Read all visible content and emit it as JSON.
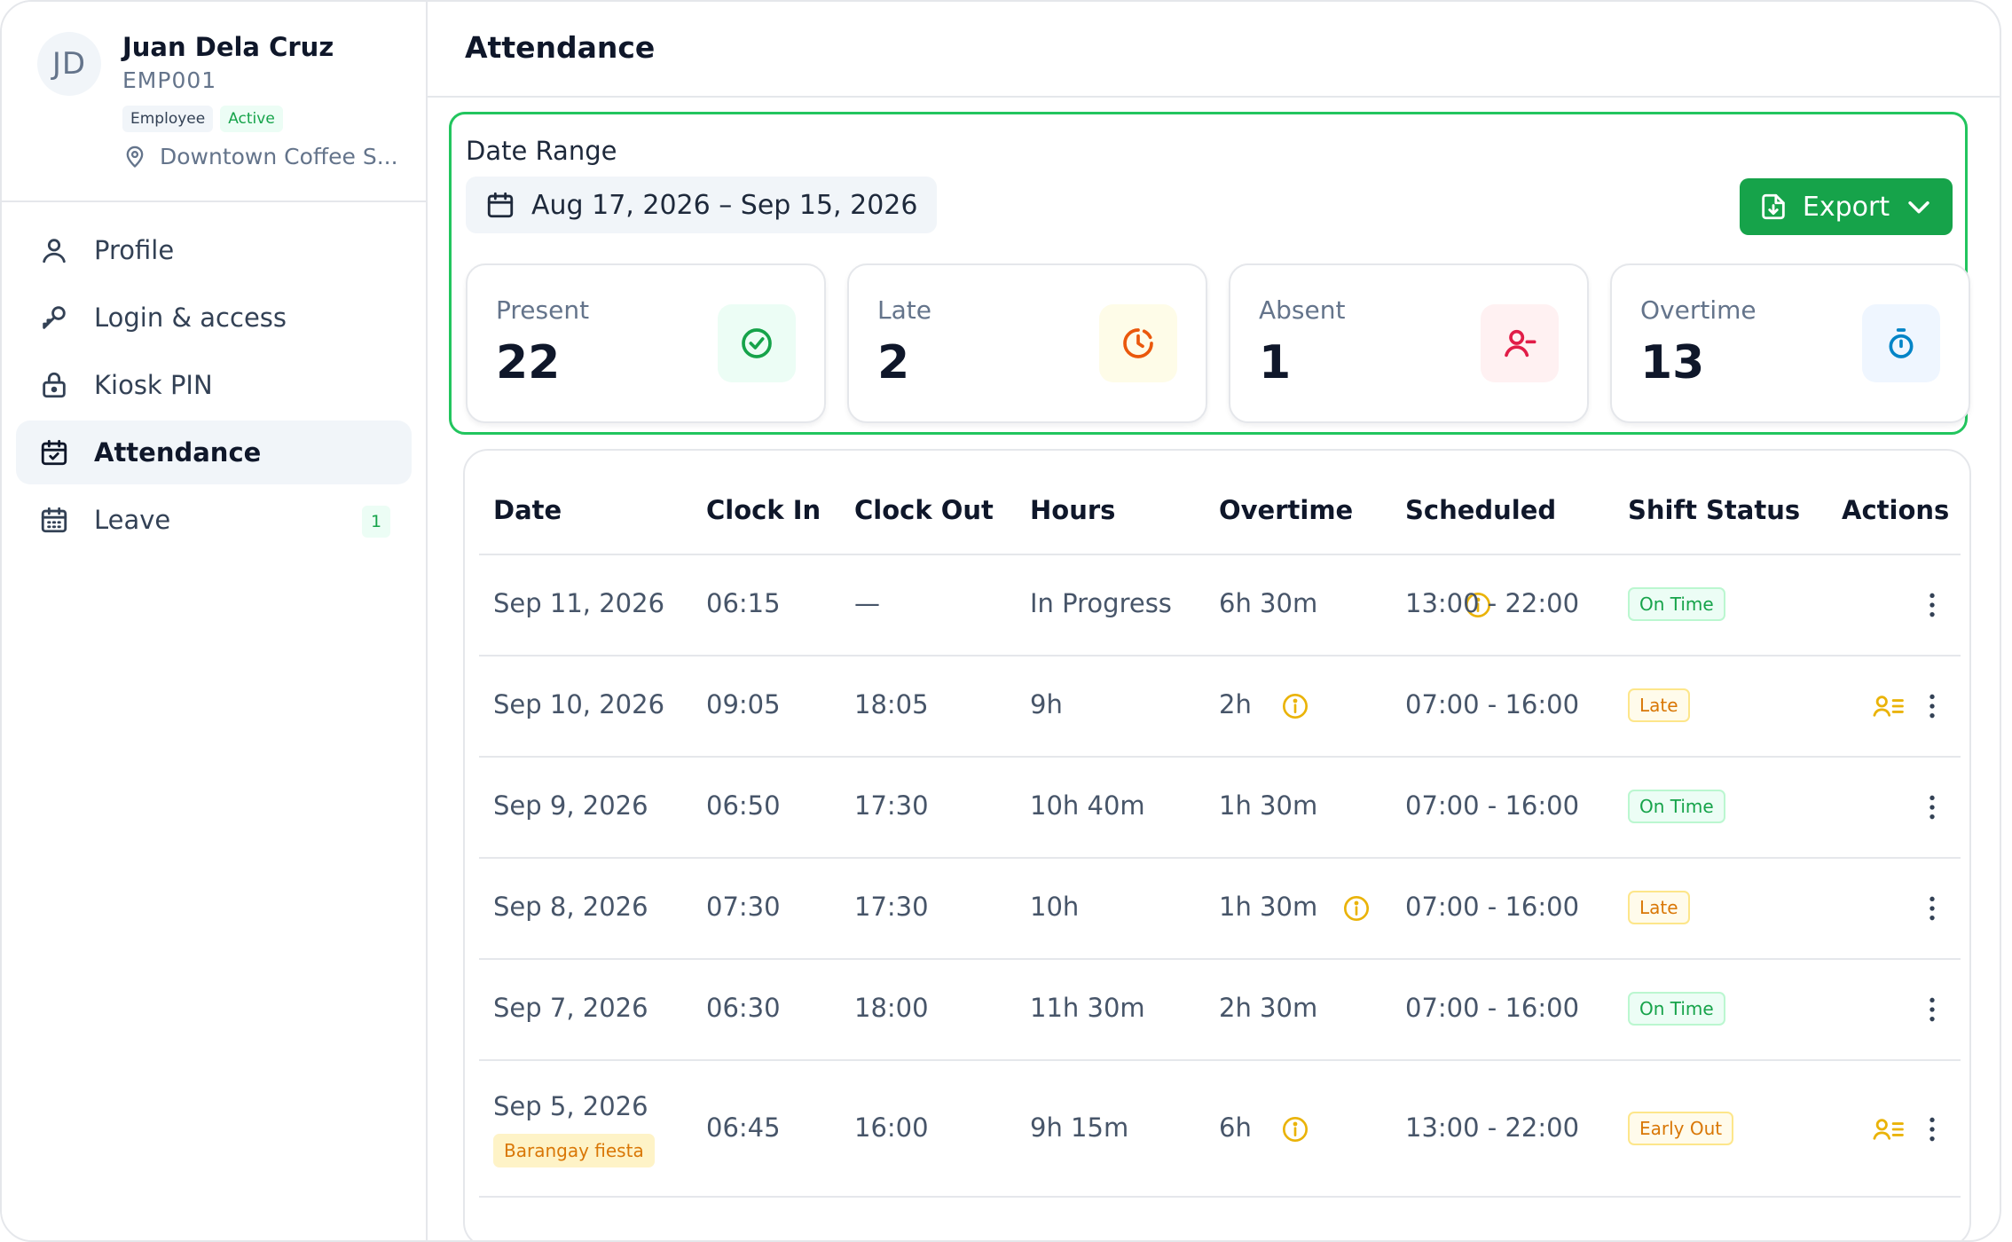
{
  "user": {
    "initials": "JD",
    "name": "Juan Dela Cruz",
    "employee_id": "EMP001",
    "role_badge": "Employee",
    "status_badge": "Active",
    "location": "Downtown Coffee S..."
  },
  "nav": {
    "items": [
      {
        "label": "Profile",
        "icon": "user-icon"
      },
      {
        "label": "Login & access",
        "icon": "key-icon"
      },
      {
        "label": "Kiosk PIN",
        "icon": "lock-icon"
      },
      {
        "label": "Attendance",
        "icon": "calendar-check-icon",
        "active": true
      },
      {
        "label": "Leave",
        "icon": "calendar-grid-icon",
        "count": "1"
      }
    ]
  },
  "page": {
    "title": "Attendance"
  },
  "summary": {
    "date_range_label": "Date Range",
    "date_range_value": "Aug 17, 2026 – Sep 15, 2026",
    "export_label": "Export",
    "stats": [
      {
        "label": "Present",
        "value": "22",
        "icon": "check-circle-icon",
        "color": "#16a34a"
      },
      {
        "label": "Late",
        "value": "2",
        "icon": "clock-late-icon",
        "color": "#ea580c"
      },
      {
        "label": "Absent",
        "value": "1",
        "icon": "user-minus-icon",
        "color": "#e11d48"
      },
      {
        "label": "Overtime",
        "value": "13",
        "icon": "stopwatch-icon",
        "color": "#0284c7"
      }
    ]
  },
  "table": {
    "headers": [
      "Date",
      "Clock In",
      "Clock Out",
      "Hours",
      "Overtime",
      "Scheduled",
      "Shift Status",
      "Actions"
    ],
    "rows": [
      {
        "date": "Sep 11, 2026",
        "clock_in": "06:15",
        "clock_out": "—",
        "hours": "In Progress",
        "overtime": "6h 30m",
        "overtime_info": true,
        "scheduled": "13:00 - 22:00",
        "status": "On Time",
        "status_tone": "green",
        "has_notes": false
      },
      {
        "date": "Sep 10, 2026",
        "clock_in": "09:05",
        "clock_out": "18:05",
        "hours": "9h",
        "overtime": "2h",
        "overtime_info": true,
        "scheduled": "07:00 - 16:00",
        "status": "Late",
        "status_tone": "amber",
        "has_notes": true
      },
      {
        "date": "Sep 9, 2026",
        "clock_in": "06:50",
        "clock_out": "17:30",
        "hours": "10h 40m",
        "overtime": "1h 30m",
        "overtime_info": false,
        "scheduled": "07:00 - 16:00",
        "status": "On Time",
        "status_tone": "green",
        "has_notes": false
      },
      {
        "date": "Sep 8, 2026",
        "clock_in": "07:30",
        "clock_out": "17:30",
        "hours": "10h",
        "overtime": "1h 30m",
        "overtime_info": true,
        "scheduled": "07:00 - 16:00",
        "status": "Late",
        "status_tone": "amber",
        "has_notes": false
      },
      {
        "date": "Sep 7, 2026",
        "clock_in": "06:30",
        "clock_out": "18:00",
        "hours": "11h 30m",
        "overtime": "2h 30m",
        "overtime_info": false,
        "scheduled": "07:00 - 16:00",
        "status": "On Time",
        "status_tone": "green",
        "has_notes": false
      },
      {
        "date": "Sep 5, 2026",
        "holiday": "Barangay fiesta",
        "clock_in": "06:45",
        "clock_out": "16:00",
        "hours": "9h 15m",
        "overtime": "6h",
        "overtime_info": true,
        "scheduled": "13:00 - 22:00",
        "status": "Early Out",
        "status_tone": "amber",
        "has_notes": true
      }
    ]
  }
}
